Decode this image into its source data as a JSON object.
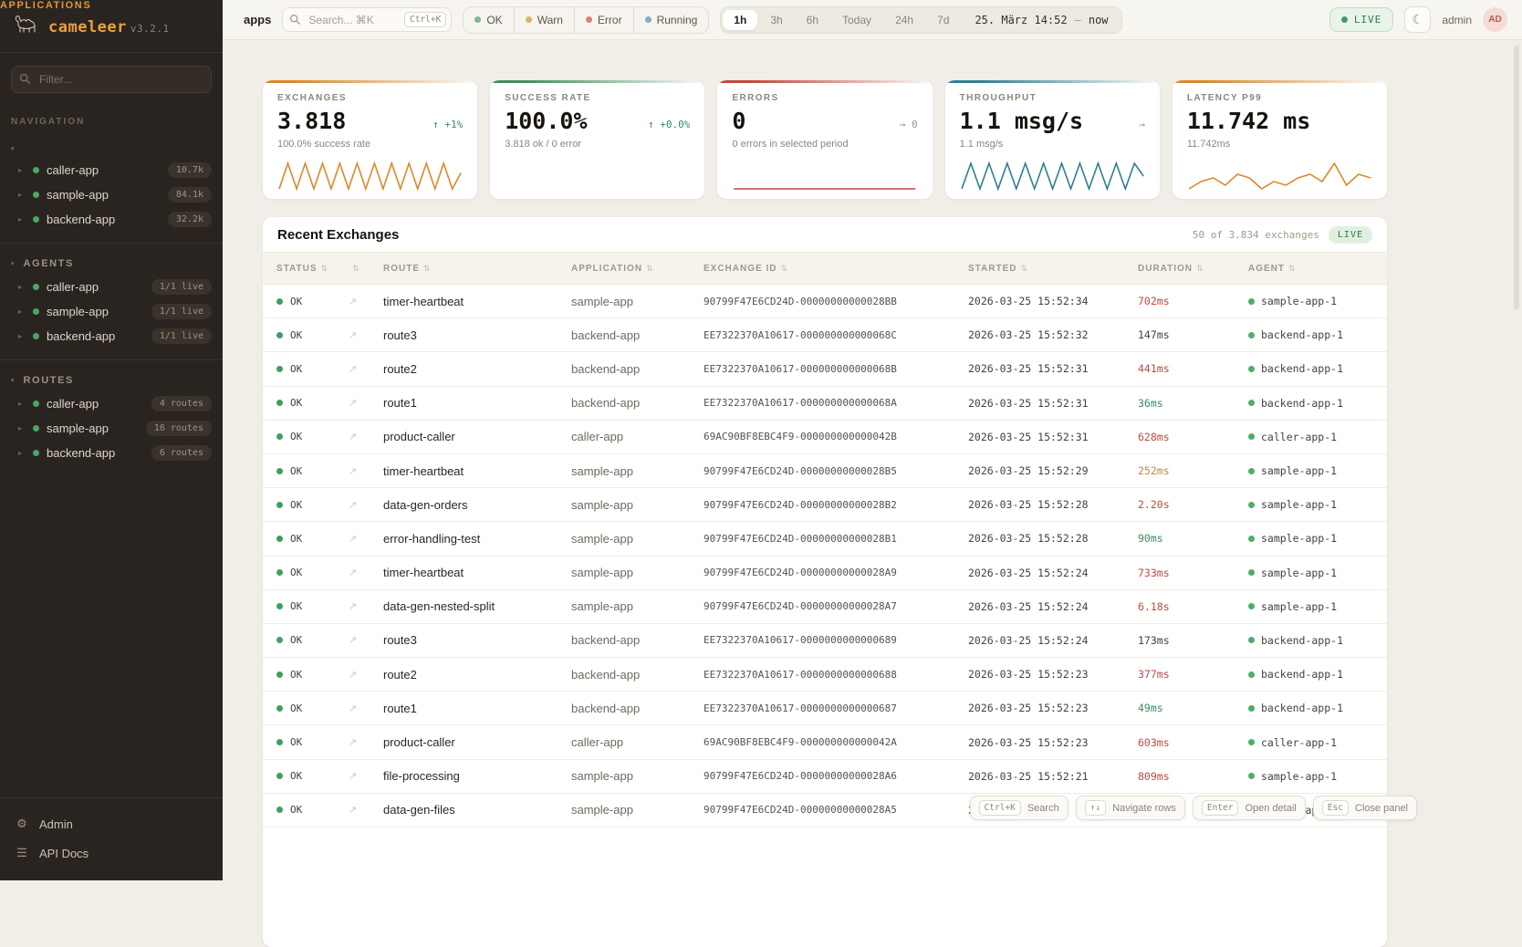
{
  "colors": {
    "brand_orange": "#eda03a",
    "live_green": "#3f9e63",
    "error_red": "#c4473c",
    "teal": "#2e7f93",
    "sidebar_bg": "#2a2421",
    "main_bg": "#f1eee8"
  },
  "sidebar": {
    "logo": {
      "name": "cameleer",
      "version": "v3.2.1"
    },
    "filter_placeholder": "Filter...",
    "nav_label": "NAVIGATION",
    "sections": [
      {
        "label": "APPLICATIONS",
        "items": [
          {
            "name": "caller-app",
            "badge": "10.7k"
          },
          {
            "name": "sample-app",
            "badge": "84.1k"
          },
          {
            "name": "backend-app",
            "badge": "32.2k"
          }
        ]
      },
      {
        "label": "AGENTS",
        "items": [
          {
            "name": "caller-app",
            "badge": "1/1 live"
          },
          {
            "name": "sample-app",
            "badge": "1/1 live"
          },
          {
            "name": "backend-app",
            "badge": "1/1 live"
          }
        ]
      },
      {
        "label": "ROUTES",
        "items": [
          {
            "name": "caller-app",
            "badge": "4 routes"
          },
          {
            "name": "sample-app",
            "badge": "16 routes"
          },
          {
            "name": "backend-app",
            "badge": "6 routes"
          }
        ]
      }
    ],
    "footer": [
      {
        "glyph": "⚙",
        "label": "Admin"
      },
      {
        "glyph": "☰",
        "label": "API Docs"
      }
    ]
  },
  "topbar": {
    "context": "apps",
    "search": {
      "placeholder": "Search... ⌘K",
      "kbd": "Ctrl+K"
    },
    "status_filters": [
      {
        "label": "OK",
        "color": "#7db98c"
      },
      {
        "label": "Warn",
        "color": "#d8b36a"
      },
      {
        "label": "Error",
        "color": "#d98078"
      },
      {
        "label": "Running",
        "color": "#7ab3bd"
      }
    ],
    "time_ranges": [
      {
        "label": "1h",
        "state": "active"
      },
      {
        "label": "3h",
        "state": ""
      },
      {
        "label": "6h",
        "state": ""
      },
      {
        "label": "Today",
        "state": ""
      },
      {
        "label": "24h",
        "state": ""
      },
      {
        "label": "7d",
        "state": ""
      }
    ],
    "time_from": "25. März 14:52",
    "time_sep": "—",
    "time_to": "now",
    "live_label": "LIVE",
    "moon_glyph": "☾",
    "user": "admin",
    "avatar": "AD"
  },
  "cards": [
    {
      "label": "EXCHANGES",
      "value": "3.818",
      "delta": "↑ +1%",
      "delta_color": "green",
      "sub": "100.0% success rate",
      "accent": "#d98a2b",
      "spark_color": "#d98a2b",
      "spark": [
        1,
        9,
        1,
        9,
        1,
        9,
        1,
        9,
        1,
        9,
        1,
        9,
        1,
        9,
        1,
        9,
        1,
        9,
        1,
        9,
        1,
        6
      ]
    },
    {
      "label": "SUCCESS RATE",
      "value": "100.0%",
      "delta": "↑ +0.0%",
      "delta_color": "green",
      "sub": "3.818 ok / 0 error",
      "accent": "#3f8e5c",
      "spark_color": "#3f8e5c",
      "spark": []
    },
    {
      "label": "ERRORS",
      "value": "0",
      "delta": "→ 0",
      "delta_color": "gray",
      "sub": "0 errors in selected period",
      "accent": "#c4473c",
      "spark_color": "#c4473c",
      "spark": [
        0,
        0
      ]
    },
    {
      "label": "THROUGHPUT",
      "value": "1.1 msg/s",
      "delta": "→",
      "delta_color": "gray",
      "sub": "1.1 msg/s",
      "accent": "#2e7f93",
      "spark_color": "#2e7f93",
      "spark": [
        1,
        9,
        1,
        9,
        1,
        9,
        1,
        9,
        1,
        9,
        1,
        9,
        1,
        9,
        1,
        9,
        1,
        9,
        1,
        9,
        5
      ]
    },
    {
      "label": "LATENCY P99",
      "value": "11.742 ms",
      "delta": "",
      "delta_color": "gray",
      "sub": "11.742ms",
      "accent": "#d98a2b",
      "spark_color": "#d98a2b",
      "spark": [
        3,
        5,
        6,
        4,
        7,
        6,
        3,
        5,
        4,
        6,
        7,
        5,
        10,
        4,
        7,
        6
      ]
    }
  ],
  "table": {
    "title": "Recent Exchanges",
    "meta_count": "50 of 3.834 exchanges",
    "live_label": "LIVE",
    "sort_glyph": "⇅",
    "link_glyph": "↗",
    "columns": [
      {
        "label": "STATUS"
      },
      {
        "label": ""
      },
      {
        "label": "ROUTE"
      },
      {
        "label": "APPLICATION"
      },
      {
        "label": "EXCHANGE ID"
      },
      {
        "label": "STARTED"
      },
      {
        "label": "DURATION"
      },
      {
        "label": "AGENT"
      }
    ],
    "rows": [
      {
        "status": "OK",
        "route": "timer-heartbeat",
        "app": "sample-app",
        "id": "90799F47E6CD24D-00000000000028BB",
        "started": "2026-03-25 15:52:34",
        "duration": "702ms",
        "dur": "red",
        "agent": "sample-app-1"
      },
      {
        "status": "OK",
        "route": "route3",
        "app": "backend-app",
        "id": "EE7322370A10617-000000000000068C",
        "started": "2026-03-25 15:52:32",
        "duration": "147ms",
        "dur": "neutral",
        "agent": "backend-app-1"
      },
      {
        "status": "OK",
        "route": "route2",
        "app": "backend-app",
        "id": "EE7322370A10617-000000000000068B",
        "started": "2026-03-25 15:52:31",
        "duration": "441ms",
        "dur": "red",
        "agent": "backend-app-1"
      },
      {
        "status": "OK",
        "route": "route1",
        "app": "backend-app",
        "id": "EE7322370A10617-000000000000068A",
        "started": "2026-03-25 15:52:31",
        "duration": "36ms",
        "dur": "green",
        "agent": "backend-app-1"
      },
      {
        "status": "OK",
        "route": "product-caller",
        "app": "caller-app",
        "id": "69AC90BF8EBC4F9-000000000000042B",
        "started": "2026-03-25 15:52:31",
        "duration": "628ms",
        "dur": "red",
        "agent": "caller-app-1"
      },
      {
        "status": "OK",
        "route": "timer-heartbeat",
        "app": "sample-app",
        "id": "90799F47E6CD24D-00000000000028B5",
        "started": "2026-03-25 15:52:29",
        "duration": "252ms",
        "dur": "amber",
        "agent": "sample-app-1"
      },
      {
        "status": "OK",
        "route": "data-gen-orders",
        "app": "sample-app",
        "id": "90799F47E6CD24D-00000000000028B2",
        "started": "2026-03-25 15:52:28",
        "duration": "2.20s",
        "dur": "red",
        "agent": "sample-app-1"
      },
      {
        "status": "OK",
        "route": "error-handling-test",
        "app": "sample-app",
        "id": "90799F47E6CD24D-00000000000028B1",
        "started": "2026-03-25 15:52:28",
        "duration": "90ms",
        "dur": "green",
        "agent": "sample-app-1"
      },
      {
        "status": "OK",
        "route": "timer-heartbeat",
        "app": "sample-app",
        "id": "90799F47E6CD24D-00000000000028A9",
        "started": "2026-03-25 15:52:24",
        "duration": "733ms",
        "dur": "red",
        "agent": "sample-app-1"
      },
      {
        "status": "OK",
        "route": "data-gen-nested-split",
        "app": "sample-app",
        "id": "90799F47E6CD24D-00000000000028A7",
        "started": "2026-03-25 15:52:24",
        "duration": "6.18s",
        "dur": "red",
        "agent": "sample-app-1"
      },
      {
        "status": "OK",
        "route": "route3",
        "app": "backend-app",
        "id": "EE7322370A10617-0000000000000689",
        "started": "2026-03-25 15:52:24",
        "duration": "173ms",
        "dur": "neutral",
        "agent": "backend-app-1"
      },
      {
        "status": "OK",
        "route": "route2",
        "app": "backend-app",
        "id": "EE7322370A10617-0000000000000688",
        "started": "2026-03-25 15:52:23",
        "duration": "377ms",
        "dur": "red",
        "agent": "backend-app-1"
      },
      {
        "status": "OK",
        "route": "route1",
        "app": "backend-app",
        "id": "EE7322370A10617-0000000000000687",
        "started": "2026-03-25 15:52:23",
        "duration": "49ms",
        "dur": "green",
        "agent": "backend-app-1"
      },
      {
        "status": "OK",
        "route": "product-caller",
        "app": "caller-app",
        "id": "69AC90BF8EBC4F9-000000000000042A",
        "started": "2026-03-25 15:52:23",
        "duration": "603ms",
        "dur": "red",
        "agent": "caller-app-1"
      },
      {
        "status": "OK",
        "route": "file-processing",
        "app": "sample-app",
        "id": "90799F47E6CD24D-00000000000028A6",
        "started": "2026-03-25 15:52:21",
        "duration": "809ms",
        "dur": "red",
        "agent": "sample-app-1"
      },
      {
        "status": "OK",
        "route": "data-gen-files",
        "app": "sample-app",
        "id": "90799F47E6CD24D-00000000000028A5",
        "started": "2026-03-25 1",
        "duration": "",
        "dur": "neutral",
        "agent": "sample-app-1"
      }
    ]
  },
  "hints": [
    {
      "kbd": "Ctrl+K",
      "label": "Search"
    },
    {
      "kbd": "↑↓",
      "label": "Navigate rows"
    },
    {
      "kbd": "Enter",
      "label": "Open detail"
    },
    {
      "kbd": "Esc",
      "label": "Close panel"
    }
  ]
}
